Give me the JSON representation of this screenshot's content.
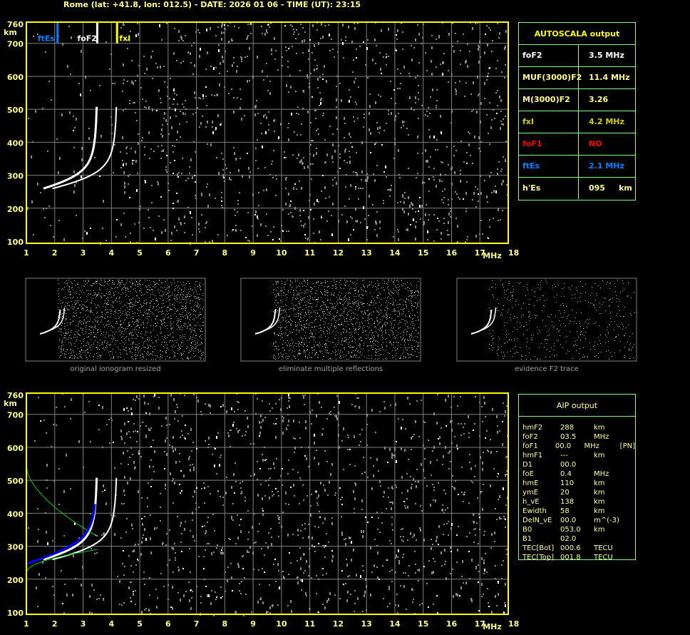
{
  "header": {
    "title": "Rome (lat: +41.8, lon: 012.5) - DATE: 2026 01 06 - TIME (UT): 23:15"
  },
  "axes": {
    "x_ticks": [
      "1",
      "2",
      "3",
      "4",
      "5",
      "6",
      "7",
      "8",
      "9",
      "10",
      "11",
      "12",
      "13",
      "14",
      "15",
      "16",
      "17",
      "18"
    ],
    "x_unit": "MHz",
    "y_ticks": [
      "760",
      "700",
      "600",
      "500",
      "400",
      "300",
      "200",
      "100"
    ],
    "y_unit": "km"
  },
  "markers": [
    {
      "label": "ftEs",
      "freq_mhz": 2.1,
      "color": "#0080ff"
    },
    {
      "label": "foF2",
      "freq_mhz": 3.5,
      "color": "#ffffff"
    },
    {
      "label": "fxI",
      "freq_mhz": 4.2,
      "color": "#ffff00"
    }
  ],
  "autoscala": {
    "title": "AUTOSCALA output",
    "rows": [
      {
        "key": "foF2",
        "value": "3.5 MHz",
        "color": "#ffffff"
      },
      {
        "key": "MUF(3000)F2",
        "value": "11.4 MHz",
        "color": "#ffff80"
      },
      {
        "key": "M(3000)F2",
        "value": "3.26",
        "color": "#ffff80"
      },
      {
        "key": "fxI",
        "value": "4.2 MHz",
        "color": "#d0d000"
      },
      {
        "key": "foF1",
        "value": "NO",
        "color": "#ff0000"
      },
      {
        "key": "ftEs",
        "value": "2.1 MHz",
        "color": "#0080ff"
      },
      {
        "key": "h'Es",
        "value": "095     km",
        "color": "#ffff80"
      }
    ]
  },
  "thumbnails": [
    {
      "caption": "original ionogram resized"
    },
    {
      "caption": "eliminate multiple reflections"
    },
    {
      "caption": "evidence F2 trace"
    }
  ],
  "aip": {
    "title": "AIP output",
    "rows": [
      [
        "hmF2",
        "288",
        "km",
        ""
      ],
      [
        "foF2",
        "03.5",
        "MHz",
        ""
      ],
      [
        "foF1",
        "00.0",
        "MHz",
        "[PN]"
      ],
      [
        "hmF1",
        "---",
        "km",
        ""
      ],
      [
        "D1",
        "00.0",
        "",
        ""
      ],
      [
        "foE",
        "0.4",
        "MHz",
        ""
      ],
      [
        "hmE",
        "110",
        "km",
        ""
      ],
      [
        "ymE",
        "20",
        "km",
        ""
      ],
      [
        "h_vE",
        "138",
        "km",
        ""
      ],
      [
        "Ewidth",
        "58",
        "km",
        ""
      ],
      [
        "DelN_vE",
        "00.0",
        "m^(-3)",
        ""
      ],
      [
        "B0",
        "053.0",
        "km",
        ""
      ],
      [
        "B1",
        "02.0",
        "",
        ""
      ],
      [
        "TEC[Bot]",
        "000.6",
        "TECU",
        ""
      ],
      [
        "TEC[Top]",
        "001.8",
        "TECU",
        ""
      ]
    ]
  },
  "colors": {
    "frame": "#ffff00",
    "grid": "#808080",
    "panel_border": "#80ff80",
    "o_trace": "#ffffff",
    "profile": "#0000ff",
    "model": "#00cc00"
  }
}
